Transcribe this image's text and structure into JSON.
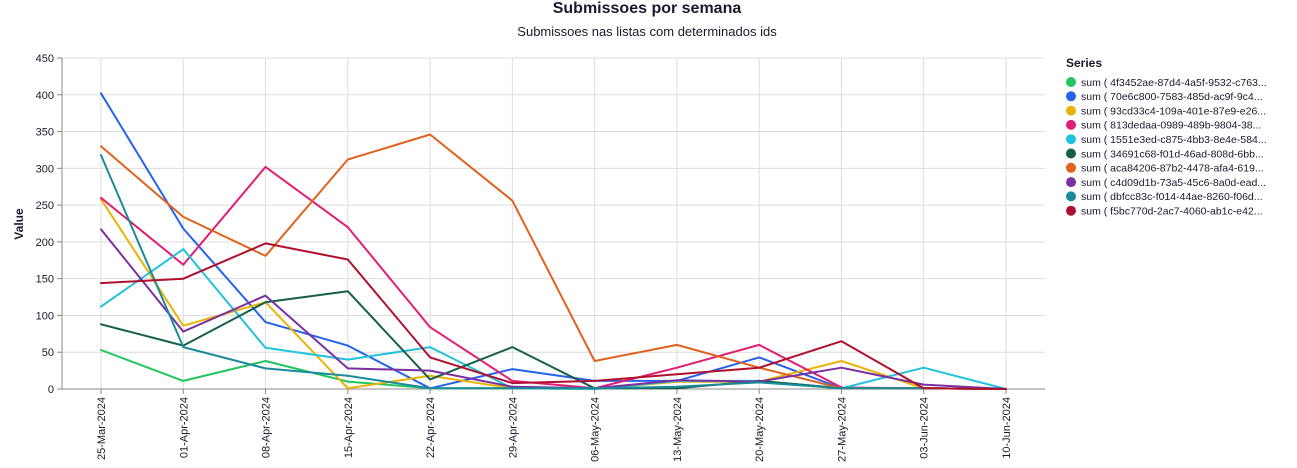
{
  "chart_data": {
    "type": "line",
    "title": "Submissoes por semana",
    "subtitle": "Submissoes nas listas com determinados ids",
    "xlabel": "",
    "ylabel": "Value",
    "ylim": [
      0,
      450
    ],
    "yticks": [
      0,
      50,
      100,
      150,
      200,
      250,
      300,
      350,
      400,
      450
    ],
    "grid": true,
    "legend_title": "Series",
    "legend_position": "right",
    "categories": [
      "25-Mar-2024",
      "01-Apr-2024",
      "08-Apr-2024",
      "15-Apr-2024",
      "22-Apr-2024",
      "29-Apr-2024",
      "06-May-2024",
      "13-May-2024",
      "20-May-2024",
      "27-May-2024",
      "03-Jun-2024",
      "10-Jun-2024"
    ],
    "series": [
      {
        "name": "sum ( 4f3452ae-87d4-4a5f-9532-c763...",
        "color": "#22c55e",
        "values": [
          53,
          11,
          38,
          10,
          1,
          1,
          0,
          10,
          10,
          1,
          1,
          0
        ]
      },
      {
        "name": "sum ( 70e6c800-7583-485d-ac9f-9c4...",
        "color": "#2563eb",
        "values": [
          402,
          218,
          91,
          59,
          1,
          27,
          11,
          11,
          43,
          1,
          1,
          0
        ]
      },
      {
        "name": "sum ( 93cd33c4-109a-401e-87e9-e26...",
        "color": "#eab308",
        "values": [
          258,
          86,
          118,
          1,
          18,
          1,
          0,
          10,
          10,
          38,
          1,
          0
        ]
      },
      {
        "name": "sum ( 813dedaa-0989-489b-9804-38...",
        "color": "#e11d74",
        "values": [
          260,
          169,
          302,
          220,
          84,
          11,
          1,
          29,
          60,
          2,
          1,
          0
        ]
      },
      {
        "name": "sum ( 1551e3ed-c875-4bb3-8e4e-584...",
        "color": "#22c1dc",
        "values": [
          112,
          190,
          56,
          40,
          57,
          1,
          0,
          11,
          11,
          1,
          29,
          0
        ]
      },
      {
        "name": "sum ( 34691c68-f01d-46ad-808d-6bb...",
        "color": "#14604a",
        "values": [
          88,
          59,
          118,
          133,
          13,
          57,
          1,
          1,
          11,
          1,
          1,
          0
        ]
      },
      {
        "name": "sum ( aca84206-87b2-4478-afa4-619...",
        "color": "#e0621e",
        "values": [
          330,
          234,
          181,
          312,
          346,
          256,
          38,
          60,
          29,
          1,
          1,
          0
        ]
      },
      {
        "name": "sum ( c4d09d1b-73a5-45c6-8a0d-ead...",
        "color": "#7b2fa0",
        "values": [
          217,
          78,
          127,
          28,
          25,
          3,
          1,
          12,
          10,
          29,
          6,
          0
        ]
      },
      {
        "name": "sum ( dbfcc83c-f014-44ae-8260-f06d...",
        "color": "#1b8a9a",
        "values": [
          318,
          57,
          28,
          18,
          1,
          1,
          1,
          3,
          9,
          1,
          1,
          0
        ]
      },
      {
        "name": "sum ( f5bc770d-2ac7-4060-ab1c-e42...",
        "color": "#b0102e",
        "values": [
          144,
          150,
          198,
          176,
          43,
          8,
          11,
          20,
          29,
          65,
          1,
          0
        ]
      }
    ]
  }
}
